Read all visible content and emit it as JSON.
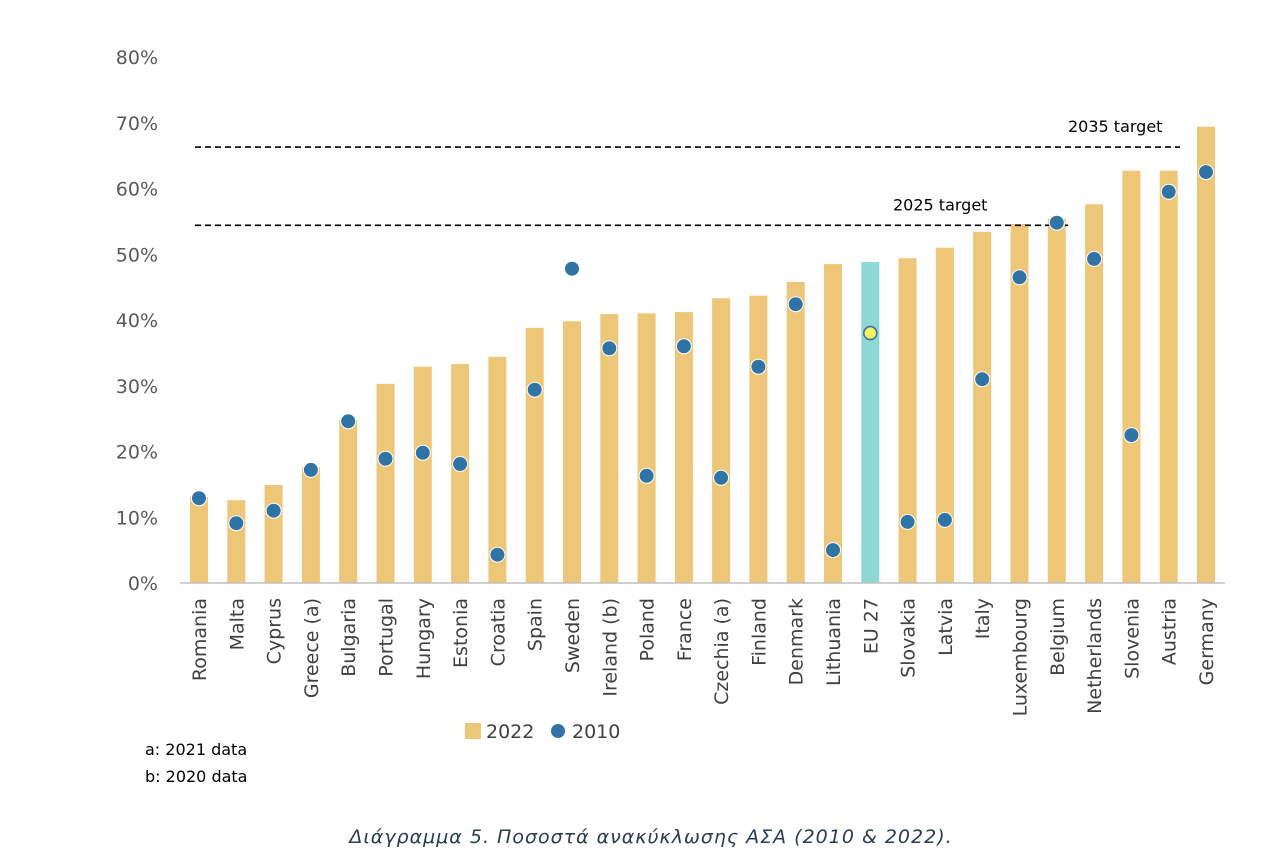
{
  "chart_data": {
    "type": "bar",
    "categories": [
      "Romania",
      "Malta",
      "Cyprus",
      "Greece (a)",
      "Bulgaria",
      "Portugal",
      "Hungary",
      "Estonia",
      "Croatia",
      "Spain",
      "Sweden",
      "Ireland (b)",
      "Poland",
      "France",
      "Czechia (a)",
      "Finland",
      "Denmark",
      "Lithuania",
      "EU 27",
      "Slovakia",
      "Latvia",
      "Italy",
      "Luxembourg",
      "Belgium",
      "Netherlands",
      "Slovenia",
      "Austria",
      "Germany"
    ],
    "series": [
      {
        "name": "2022",
        "mark": "bar",
        "color": "#EEC677",
        "values": [
          13.1,
          12.6,
          14.9,
          17.6,
          24.8,
          30.3,
          32.9,
          33.3,
          34.4,
          38.8,
          39.8,
          40.9,
          41.0,
          41.2,
          43.3,
          43.7,
          45.8,
          48.5,
          48.8,
          49.4,
          51.0,
          53.4,
          54.6,
          55.4,
          57.6,
          62.7,
          62.7,
          69.4
        ]
      },
      {
        "name": "2010",
        "mark": "scatter",
        "color": "#2F74A5",
        "values": [
          12.9,
          9.1,
          11.0,
          17.2,
          24.6,
          18.9,
          19.8,
          18.1,
          4.3,
          29.4,
          47.8,
          35.7,
          16.3,
          36.0,
          16.0,
          32.9,
          42.4,
          5.0,
          38.0,
          9.3,
          9.6,
          31.0,
          46.5,
          54.8,
          49.3,
          22.5,
          59.5,
          62.5
        ]
      }
    ],
    "highlight": {
      "category": "EU 27",
      "bar_color": "#8DD7D4",
      "marker_color": "#F5F25C"
    },
    "targets": [
      {
        "label": "2035 target",
        "value": 66.3,
        "line": "dashed",
        "color": "#000000"
      },
      {
        "label": "2025 target",
        "value": 54.4,
        "line": "dashed",
        "color": "#000000"
      }
    ],
    "ylim": [
      0,
      80
    ],
    "yticks": [
      {
        "value": 0,
        "label": "0%"
      },
      {
        "value": 10,
        "label": "10%"
      },
      {
        "value": 20,
        "label": "20%"
      },
      {
        "value": 30,
        "label": "30%"
      },
      {
        "value": 40,
        "label": "40%"
      },
      {
        "value": 50,
        "label": "50%"
      },
      {
        "value": 60,
        "label": "60%"
      },
      {
        "value": 70,
        "label": "70%"
      },
      {
        "value": 80,
        "label": "80%"
      }
    ],
    "axis_color": "#BFBFBF",
    "grid": false,
    "legend": "bottom-center"
  },
  "notes": [
    "a: 2021 data",
    "b: 2020 data"
  ],
  "caption": "Διάγραμμα 5. Ποσοστά ανακύκλωσης ΑΣΑ (2010 & 2022)."
}
